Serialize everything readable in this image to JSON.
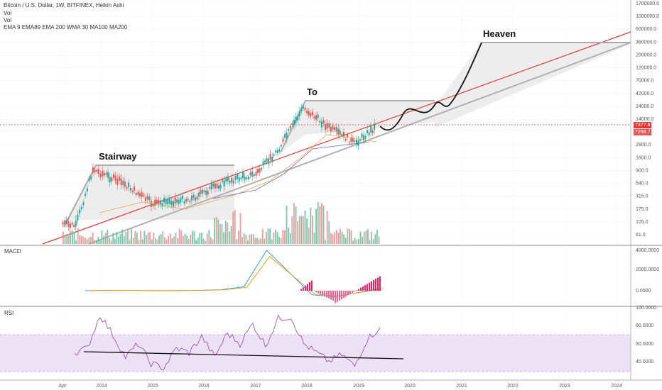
{
  "header": {
    "symbol_line": "Bitcoin / U.S. Dollar, 1W, BITFINEX, Heikin Ashi",
    "vol1": "Vol",
    "vol2": "Vol",
    "indicators": "EMA 9 EMA89 EMA 200 WMA 30 MA100 MA200"
  },
  "annotations": {
    "stairway": "Stairway",
    "to": "To",
    "heaven": "Heaven"
  },
  "price_tags": {
    "current": "7377.8",
    "second": "7298.7"
  },
  "panes": {
    "macd_label": "MACD",
    "rsi_label": "RSI"
  },
  "colors": {
    "up": "#26a69a",
    "down": "#ef5350",
    "trendline": "#e53935",
    "channel": "#b0b0b0",
    "rsi": "#8e44ad",
    "macd": "#2196f3",
    "signal": "#ff9800"
  },
  "chart_data": [
    {
      "type": "candlestick",
      "title": "Bitcoin / U.S. Dollar, 1W, BITFINEX, Heikin Ashi",
      "scale": "log",
      "y_ticks": [
        "1700000.0",
        "1000000.0",
        "600000.0",
        "360000.0",
        "200000.0",
        "120000.0",
        "70000.0",
        "42000.0",
        "24000.0",
        "14000.0",
        "4800.0",
        "2800.0",
        "1600.0",
        "900.0",
        "540.0",
        "315.0",
        "175.0",
        "105.0",
        "61.0"
      ],
      "x_ticks": [
        "Apr",
        "2014",
        "2015",
        "2016",
        "2017",
        "2018",
        "2019",
        "2020",
        "2021",
        "2022",
        "2023",
        "2024"
      ],
      "price_path": [
        {
          "date": "2013-04",
          "price": 100
        },
        {
          "date": "2013-07",
          "price": 90
        },
        {
          "date": "2013-11",
          "price": 1100
        },
        {
          "date": "2014-06",
          "price": 600
        },
        {
          "date": "2015-01",
          "price": 240
        },
        {
          "date": "2015-10",
          "price": 300
        },
        {
          "date": "2016-06",
          "price": 650
        },
        {
          "date": "2017-01",
          "price": 900
        },
        {
          "date": "2017-06",
          "price": 2500
        },
        {
          "date": "2017-12",
          "price": 17000
        },
        {
          "date": "2018-06",
          "price": 7000
        },
        {
          "date": "2018-12",
          "price": 3500
        },
        {
          "date": "2019-05",
          "price": 7377.8
        }
      ],
      "projection": [
        {
          "date": "2019-08",
          "price": 9000
        },
        {
          "date": "2019-11",
          "price": 12000
        },
        {
          "date": "2020-04",
          "price": 10000
        },
        {
          "date": "2020-08",
          "price": 25000
        },
        {
          "date": "2020-09",
          "price": 17000
        },
        {
          "date": "2021-05",
          "price": 300000
        }
      ],
      "annotations": [
        "Stairway",
        "To",
        "Heaven"
      ],
      "current_price": 7377.8,
      "secondary_price": 7298.7
    },
    {
      "type": "line",
      "title": "MACD",
      "y_ticks": [
        "4000.0000",
        "2000.0000",
        "0.0000"
      ],
      "series": [
        {
          "values": [
            0,
            50,
            30,
            10,
            20,
            40,
            100,
            400,
            4000,
            1800,
            -400,
            -600,
            -200,
            200
          ]
        }
      ]
    },
    {
      "type": "line",
      "title": "RSI",
      "y_ticks": [
        "100.0000",
        "80.0000",
        "60.0000",
        "40.0000"
      ],
      "ylim": [
        30,
        100
      ],
      "series": [
        {
          "values": [
            50,
            55,
            92,
            70,
            45,
            60,
            38,
            33,
            55,
            50,
            68,
            45,
            72,
            60,
            82,
            58,
            88,
            90,
            60,
            50,
            40,
            48,
            35,
            65,
            78
          ]
        }
      ]
    }
  ]
}
